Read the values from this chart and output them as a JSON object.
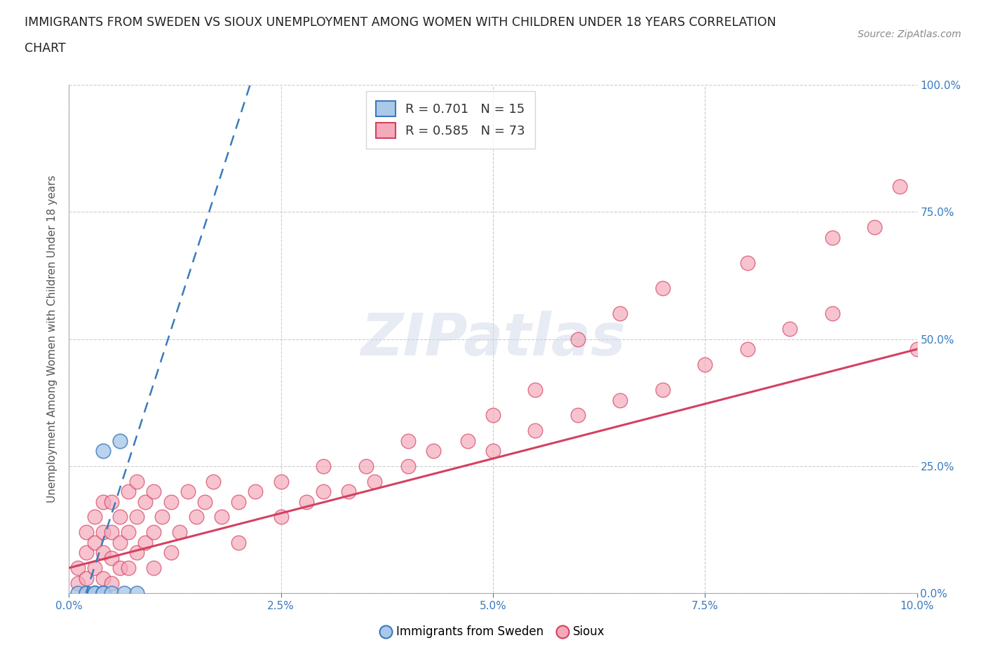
{
  "title_line1": "IMMIGRANTS FROM SWEDEN VS SIOUX UNEMPLOYMENT AMONG WOMEN WITH CHILDREN UNDER 18 YEARS CORRELATION",
  "title_line2": "CHART",
  "source": "Source: ZipAtlas.com",
  "xlabel": "Immigrants from Sweden",
  "ylabel": "Unemployment Among Women with Children Under 18 years",
  "xlim": [
    0.0,
    0.1
  ],
  "ylim": [
    0.0,
    1.0
  ],
  "xticks": [
    0.0,
    0.025,
    0.05,
    0.075,
    0.1
  ],
  "yticks": [
    0.0,
    0.25,
    0.5,
    0.75,
    1.0
  ],
  "xticklabels": [
    "0.0%",
    "2.5%",
    "5.0%",
    "7.5%",
    "10.0%"
  ],
  "yticklabels": [
    "0.0%",
    "25.0%",
    "50.0%",
    "75.0%",
    "100.0%"
  ],
  "sweden_R": 0.701,
  "sweden_N": 15,
  "sioux_R": 0.585,
  "sioux_N": 73,
  "sweden_color": "#aac8e8",
  "sioux_color": "#f4aabb",
  "sweden_line_color": "#3a7abf",
  "sioux_line_color": "#d44060",
  "watermark_text": "ZIPatlas",
  "background_color": "#ffffff",
  "sweden_scatter_x": [
    0.001,
    0.002,
    0.002,
    0.003,
    0.003,
    0.003,
    0.003,
    0.004,
    0.004,
    0.004,
    0.004,
    0.005,
    0.006,
    0.0065,
    0.008
  ],
  "sweden_scatter_y": [
    0.0,
    0.0,
    0.0,
    0.0,
    0.0,
    0.0,
    0.0,
    0.0,
    0.0,
    0.0,
    0.28,
    0.0,
    0.3,
    0.0,
    0.0
  ],
  "sioux_scatter_x": [
    0.001,
    0.001,
    0.002,
    0.002,
    0.002,
    0.003,
    0.003,
    0.003,
    0.004,
    0.004,
    0.004,
    0.004,
    0.005,
    0.005,
    0.005,
    0.005,
    0.006,
    0.006,
    0.006,
    0.007,
    0.007,
    0.007,
    0.008,
    0.008,
    0.008,
    0.009,
    0.009,
    0.01,
    0.01,
    0.01,
    0.011,
    0.012,
    0.012,
    0.013,
    0.014,
    0.015,
    0.016,
    0.017,
    0.018,
    0.02,
    0.022,
    0.025,
    0.028,
    0.03,
    0.033,
    0.036,
    0.04,
    0.043,
    0.047,
    0.05,
    0.055,
    0.06,
    0.065,
    0.07,
    0.075,
    0.08,
    0.085,
    0.09,
    0.02,
    0.025,
    0.03,
    0.035,
    0.04,
    0.05,
    0.055,
    0.06,
    0.065,
    0.07,
    0.08,
    0.09,
    0.095,
    0.098,
    0.1
  ],
  "sioux_scatter_y": [
    0.02,
    0.05,
    0.03,
    0.08,
    0.12,
    0.05,
    0.1,
    0.15,
    0.03,
    0.08,
    0.12,
    0.18,
    0.02,
    0.07,
    0.12,
    0.18,
    0.05,
    0.1,
    0.15,
    0.05,
    0.12,
    0.2,
    0.08,
    0.15,
    0.22,
    0.1,
    0.18,
    0.05,
    0.12,
    0.2,
    0.15,
    0.08,
    0.18,
    0.12,
    0.2,
    0.15,
    0.18,
    0.22,
    0.15,
    0.18,
    0.2,
    0.22,
    0.18,
    0.25,
    0.2,
    0.22,
    0.25,
    0.28,
    0.3,
    0.28,
    0.32,
    0.35,
    0.38,
    0.4,
    0.45,
    0.48,
    0.52,
    0.55,
    0.1,
    0.15,
    0.2,
    0.25,
    0.3,
    0.35,
    0.4,
    0.5,
    0.55,
    0.6,
    0.65,
    0.7,
    0.72,
    0.8,
    0.48
  ],
  "sioux_line_x0": 0.0,
  "sioux_line_y0": 0.05,
  "sioux_line_x1": 0.1,
  "sioux_line_y1": 0.48,
  "sweden_line_x0": 0.002,
  "sweden_line_y0": 0.0,
  "sweden_line_x1": 0.008,
  "sweden_line_y1": 0.31
}
